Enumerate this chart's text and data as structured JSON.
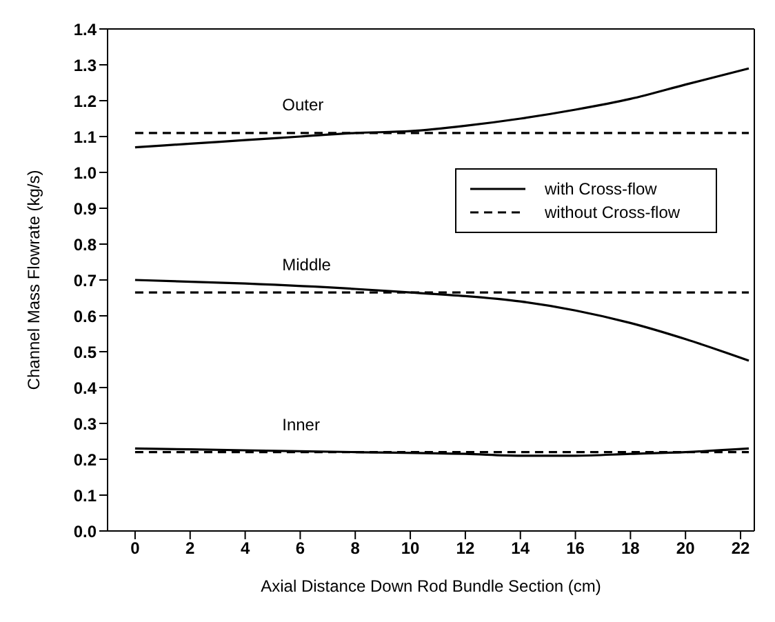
{
  "chart_data": {
    "type": "line",
    "xlabel": "Axial Distance Down Rod Bundle Section (cm)",
    "ylabel": "Channel Mass Flowrate (kg/s)",
    "xlim": [
      -1,
      22.5
    ],
    "xticks": [
      0,
      2,
      4,
      6,
      8,
      10,
      12,
      14,
      16,
      18,
      20,
      22
    ],
    "ylim": [
      0,
      1.4
    ],
    "yticks": [
      {
        "value": 0,
        "label": "0.0"
      },
      0.1,
      0.2,
      0.3,
      0.4,
      0.5,
      0.6,
      0.7,
      0.8,
      0.9,
      {
        "value": 1,
        "label": "1.0"
      },
      1.1,
      1.2,
      1.3,
      1.4
    ],
    "legend": "right",
    "marker": "none",
    "series": [
      {
        "name": "with Cross-flow",
        "color": "#000000",
        "line_style": "solid",
        "x": [
          0,
          2,
          4,
          6,
          8,
          10,
          12,
          14,
          16,
          18,
          20,
          22.3
        ],
        "values": [
          1.07,
          1.08,
          1.09,
          1.1,
          1.11,
          1.115,
          1.13,
          1.15,
          1.175,
          1.205,
          1.245,
          1.29
        ]
      },
      {
        "name": "without Cross-flow",
        "color": "#000000",
        "line_style": "dashed",
        "x": [
          0,
          22.3
        ],
        "values": [
          1.11,
          1.11
        ]
      },
      {
        "color": "#000000",
        "line_style": "solid",
        "x": [
          0,
          4,
          8,
          10,
          12,
          14,
          16,
          18,
          20,
          22.3
        ],
        "values": [
          0.7,
          0.69,
          0.675,
          0.665,
          0.655,
          0.64,
          0.615,
          0.58,
          0.535,
          0.475
        ]
      },
      {
        "color": "#000000",
        "line_style": "dashed",
        "x": [
          0,
          22.3
        ],
        "values": [
          0.665,
          0.665
        ]
      },
      {
        "color": "#000000",
        "line_style": "solid",
        "x": [
          0,
          4,
          8,
          12,
          14,
          16,
          18,
          20,
          22.3
        ],
        "values": [
          0.23,
          0.225,
          0.22,
          0.215,
          0.21,
          0.21,
          0.215,
          0.22,
          0.23
        ]
      },
      {
        "color": "#000000",
        "line_style": "dashed",
        "x": [
          0,
          22.3
        ],
        "values": [
          0.22,
          0.22
        ]
      }
    ],
    "annotations": [
      "Outer",
      "Middle",
      "Inner"
    ]
  }
}
